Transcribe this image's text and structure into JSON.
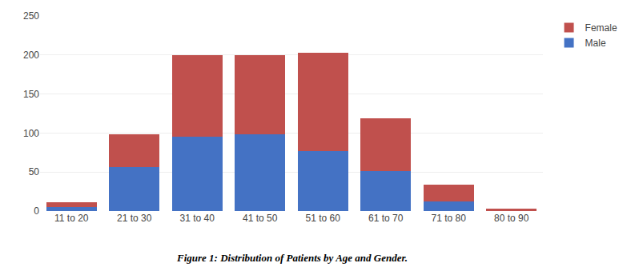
{
  "chart_data": {
    "type": "bar",
    "stacked": true,
    "categories": [
      "11 to 20",
      "21 to 30",
      "31 to 40",
      "41 to 50",
      "51 to 60",
      "61 to 70",
      "71 to 80",
      "80 to 90"
    ],
    "series": [
      {
        "name": "Male",
        "color": "#4472C4",
        "values": [
          5,
          56,
          95,
          98,
          77,
          51,
          12,
          0
        ]
      },
      {
        "name": "Female",
        "color": "#C0504D",
        "values": [
          6,
          42,
          105,
          102,
          126,
          68,
          22,
          3
        ]
      }
    ],
    "ylim": [
      0,
      250
    ],
    "yticks": [
      0,
      50,
      100,
      150,
      200,
      250
    ],
    "grid": true,
    "legend": "upper right",
    "annotations": [
      "Figure 1: Distribution of Patients by Age and Gender."
    ]
  }
}
